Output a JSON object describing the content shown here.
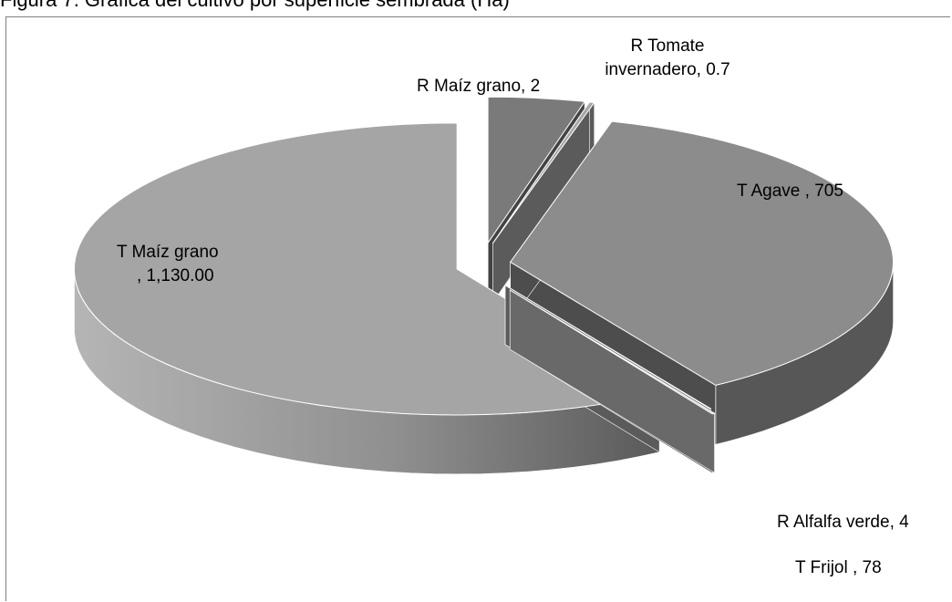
{
  "chart_data": {
    "type": "pie",
    "title": "Figura 7. Gráfica del cultivo por superficie sembrada (Ha)",
    "slices": [
      {
        "category": "T Maíz grano",
        "value": 1130.0,
        "label": [
          "T Maíz grano",
          ", 1,130.00"
        ],
        "color": "#a5a5a5"
      },
      {
        "category": "R Maíz grano",
        "value": 2,
        "label": [
          "R Maíz grano, 2"
        ],
        "color": "#bfbfbf"
      },
      {
        "category": "R Tomate invernadero",
        "value": 0.7,
        "label": [
          "R Tomate",
          "invernadero, 0.7"
        ],
        "color": "#a6a6a6"
      },
      {
        "category": "T Agave",
        "value": 705,
        "label": [
          "T Agave , 705"
        ],
        "color": "#8c8c8c"
      },
      {
        "category": "R Alfalfa verde",
        "value": 4,
        "label": [
          "R Alfalfa verde, 4"
        ],
        "color": "#a6a6a6"
      },
      {
        "category": "T Frijol",
        "value": 78,
        "label": [
          "T Frijol , 78"
        ],
        "color": "#7a7a7a"
      }
    ],
    "legend": "none",
    "style": "3d-exploded"
  }
}
